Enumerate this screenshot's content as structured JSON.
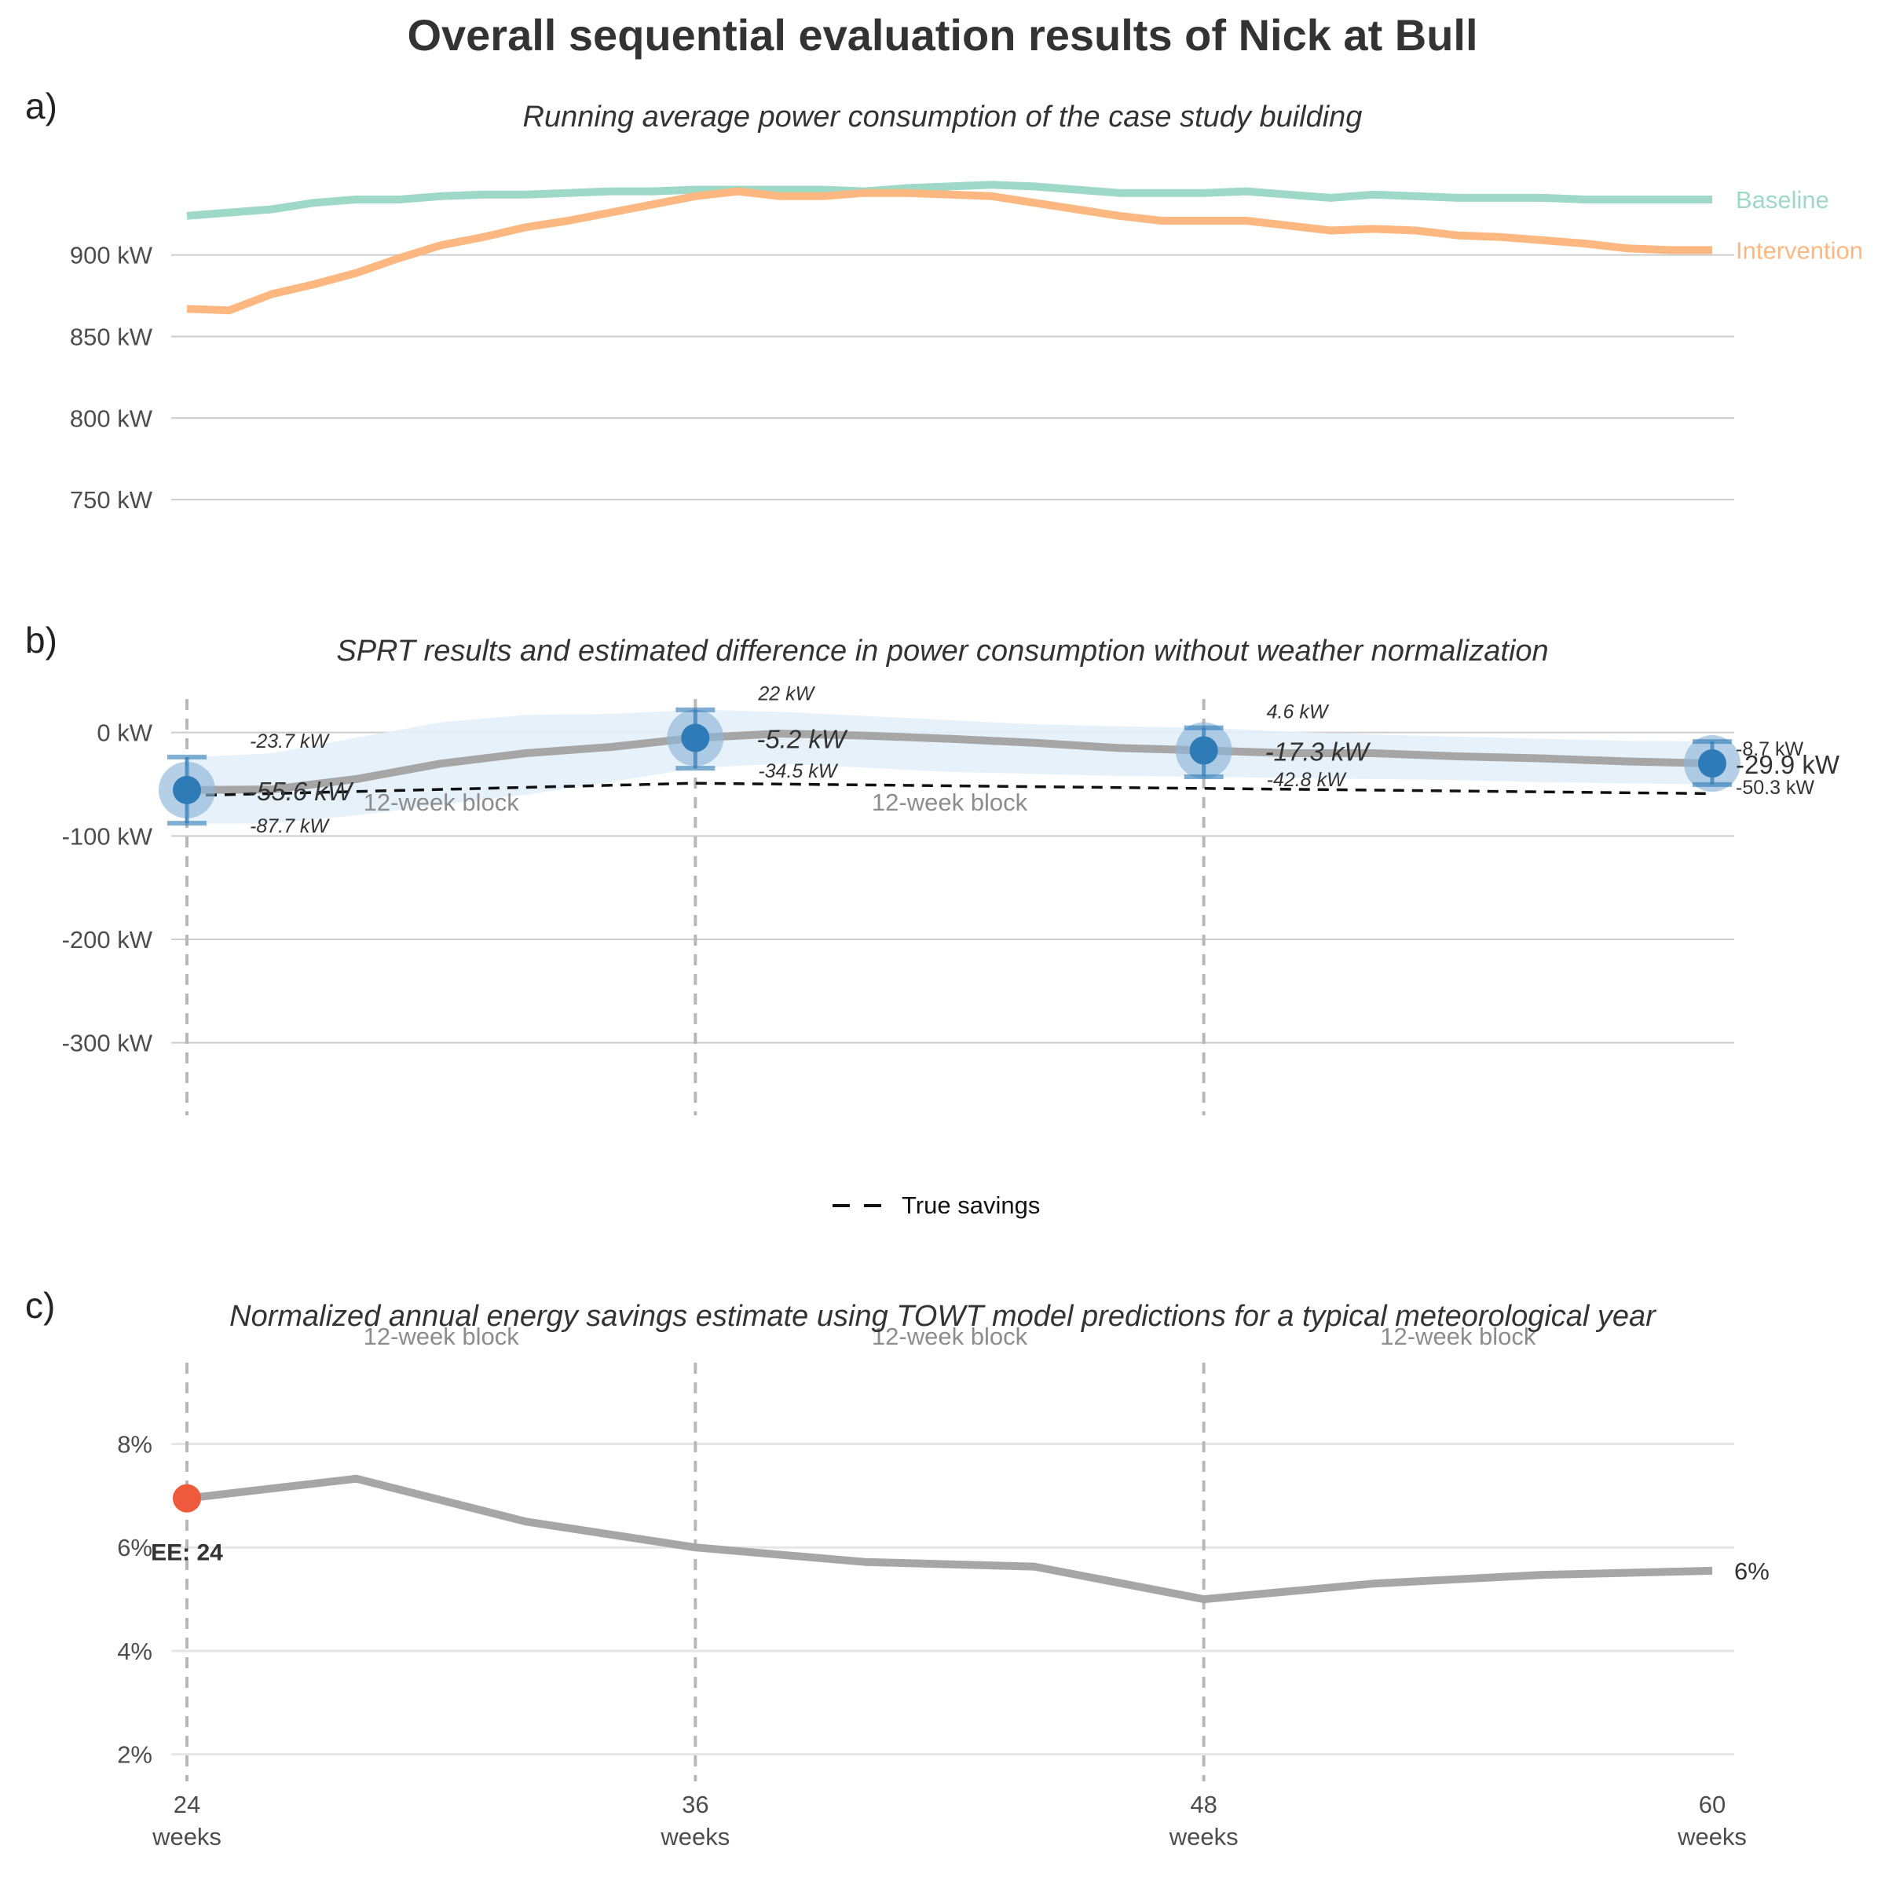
{
  "title": "Overall sequential evaluation results of Nick at Bull",
  "panels": {
    "a": {
      "tag": "a)",
      "subtitle": "Running average power consumption of the case study building"
    },
    "b": {
      "tag": "b)",
      "subtitle": "SPRT results and estimated difference in power consumption without weather normalization"
    },
    "c": {
      "tag": "c)",
      "subtitle": "Normalized annual energy savings estimate using TOWT model predictions for a typical meteorological year"
    }
  },
  "legend": {
    "label": "True savings"
  },
  "colors": {
    "baseline": "#9ed8c6",
    "intervention": "#fcb880",
    "estimate_line": "#a6a6a6",
    "estimate_band": "#e3eff8",
    "point": "#2e7bb8",
    "point_halo": "#8db6d9",
    "true_savings": "#111111",
    "early_end": "#f05a3c",
    "grid": "#cccccc",
    "block_label": "#8c8c8c"
  },
  "chart_data": [
    {
      "id": "a",
      "type": "line",
      "ylim": [
        700,
        960
      ],
      "yticks": [
        750,
        800,
        850,
        900
      ],
      "ytick_labels": [
        "750 kW",
        "800 kW",
        "850 kW",
        "900 kW"
      ],
      "xlim": [
        24,
        60
      ],
      "series": [
        {
          "name": "Baseline",
          "x": [
            24,
            25,
            26,
            27,
            28,
            29,
            30,
            31,
            32,
            33,
            34,
            35,
            36,
            37,
            38,
            39,
            40,
            41,
            42,
            43,
            44,
            45,
            46,
            47,
            48,
            49,
            50,
            51,
            52,
            53,
            54,
            55,
            56,
            57,
            58,
            59,
            60
          ],
          "values": [
            924,
            926,
            928,
            932,
            934,
            934,
            936,
            937,
            937,
            938,
            939,
            939,
            940,
            940,
            940,
            940,
            939,
            941,
            942,
            943,
            942,
            940,
            938,
            938,
            938,
            939,
            937,
            935,
            937,
            936,
            935,
            935,
            935,
            934,
            934,
            934,
            934
          ]
        },
        {
          "name": "Intervention",
          "x": [
            24,
            25,
            26,
            27,
            28,
            29,
            30,
            31,
            32,
            33,
            34,
            35,
            36,
            37,
            38,
            39,
            40,
            41,
            42,
            43,
            44,
            45,
            46,
            47,
            48,
            49,
            50,
            51,
            52,
            53,
            54,
            55,
            56,
            57,
            58,
            59,
            60
          ],
          "values": [
            867,
            866,
            876,
            882,
            889,
            898,
            906,
            911,
            917,
            921,
            926,
            931,
            936,
            939,
            936,
            936,
            938,
            938,
            937,
            936,
            932,
            928,
            924,
            921,
            921,
            921,
            918,
            915,
            916,
            915,
            912,
            911,
            909,
            907,
            904,
            903,
            903
          ]
        }
      ]
    },
    {
      "id": "b",
      "type": "line",
      "ylim": [
        -380,
        40
      ],
      "yticks": [
        -300,
        -200,
        -100,
        0
      ],
      "ytick_labels": [
        "-300 kW",
        "-200 kW",
        "-100 kW",
        "0 kW"
      ],
      "xlim": [
        24,
        60
      ],
      "estimate": {
        "x": [
          24,
          26,
          28,
          30,
          32,
          34,
          36,
          38,
          40,
          42,
          44,
          46,
          48,
          50,
          52,
          54,
          56,
          58,
          60
        ],
        "values": [
          -55.6,
          -55,
          -45,
          -30,
          -20,
          -14,
          -5.2,
          -1,
          -3,
          -6,
          -10,
          -15,
          -17.3,
          -20,
          -20,
          -23,
          -25,
          -28,
          -29.9
        ],
        "upper": [
          -24,
          -20,
          -5,
          10,
          17,
          18,
          22,
          20,
          16,
          12,
          8,
          6,
          4.6,
          1,
          -2,
          -4,
          -6,
          -8,
          -8.7
        ],
        "lower": [
          -88,
          -88,
          -80,
          -70,
          -60,
          -48,
          -34.5,
          -30,
          -34,
          -38,
          -40,
          -42,
          -42.8,
          -44,
          -45,
          -46,
          -48,
          -49,
          -50.3
        ]
      },
      "true_savings": {
        "name": "True savings",
        "x": [
          24,
          36,
          48,
          60
        ],
        "values": [
          -61,
          -49,
          -54,
          -59
        ]
      },
      "sprt_points": [
        {
          "x": 24,
          "value": -55.6,
          "upper": -23.7,
          "lower": -87.7,
          "label": "-55.6 kW",
          "upper_label": "-23.7 kW",
          "lower_label": "-87.7 kW"
        },
        {
          "x": 36,
          "value": -5.2,
          "upper": 22,
          "lower": -34.5,
          "label": "-5.2 kW",
          "upper_label": "22 kW",
          "lower_label": "-34.5 kW"
        },
        {
          "x": 48,
          "value": -17.3,
          "upper": 4.6,
          "lower": -42.8,
          "label": "-17.3 kW",
          "upper_label": "4.6 kW",
          "lower_label": "-42.8 kW"
        },
        {
          "x": 60,
          "value": -29.9,
          "upper": -8.7,
          "lower": -50.3,
          "label": "-29.9 kW",
          "upper_label": "-8.7 kW",
          "lower_label": "-50.3 kW"
        }
      ],
      "block_label": "12-week block",
      "vlines": [
        24,
        36,
        48
      ]
    },
    {
      "id": "c",
      "type": "line",
      "ylim": [
        1.6,
        9.8
      ],
      "yticks": [
        2,
        4,
        6,
        8
      ],
      "ytick_labels": [
        "2%",
        "4%",
        "6%",
        "8%"
      ],
      "xlim": [
        24,
        60
      ],
      "xticks": [
        24,
        36,
        48,
        60
      ],
      "xtick_labels": [
        "24",
        "36",
        "48",
        "60"
      ],
      "xtick_sublabel": "weeks",
      "series": [
        {
          "name": "",
          "x": [
            24,
            28,
            32,
            36,
            40,
            44,
            48,
            52,
            56,
            60
          ],
          "values": [
            6.95,
            7.33,
            6.5,
            6.0,
            5.72,
            5.63,
            5.0,
            5.3,
            5.47,
            5.55
          ]
        }
      ],
      "end_label": "6%",
      "early_end": {
        "x": 24,
        "value": 6.95,
        "label": "EE: 24"
      },
      "block_label": "12-week block",
      "vlines": [
        24,
        36,
        48
      ]
    }
  ]
}
